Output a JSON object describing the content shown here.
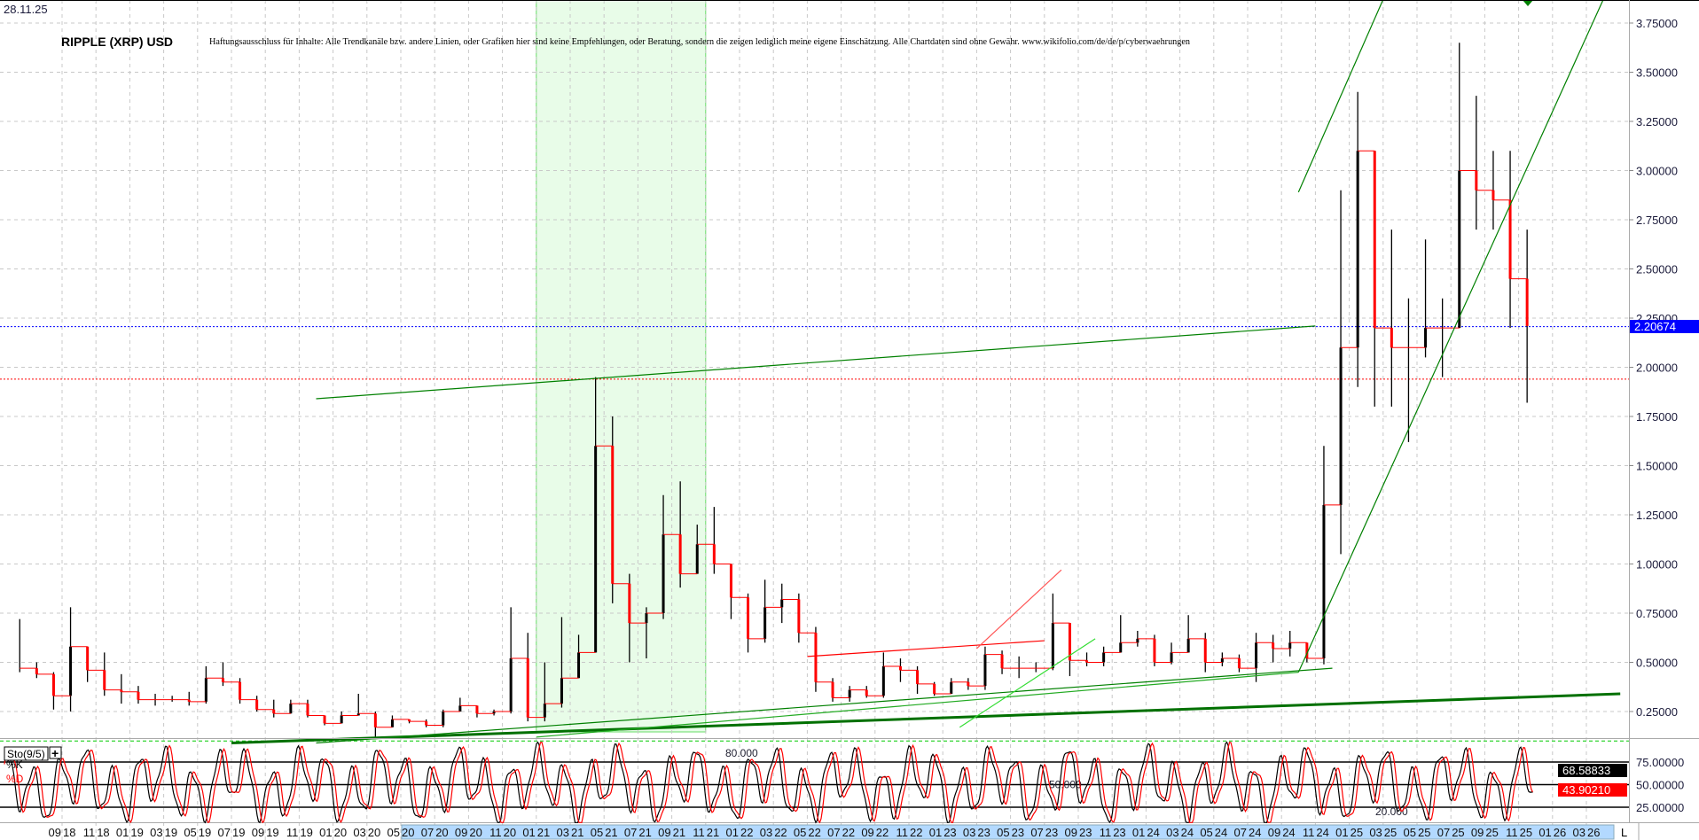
{
  "header": {
    "date": "28.11.25",
    "title": "RIPPLE (XRP) USD",
    "disclaimer": "Haftungsausschluss für Inhalte: Alle Trendkanäle bzw. andere Linien, oder Grafiken hier sind keine Empfehlungen, oder Beratung, sondern die zeigen lediglich meine eigene Einschätzung. Alle Chartdaten sind ohne Gewähr.  www.wikifolio.com/de/de/p/cyberwaehrungen"
  },
  "chart_data": [
    {
      "type": "ohlc",
      "title": "RIPPLE (XRP) USD",
      "y_axis_position": "right",
      "ylim": [
        0.1,
        3.87
      ],
      "yticks": [
        "3.75000",
        "3.50000",
        "3.25000",
        "3.00000",
        "2.75000",
        "2.50000",
        "2.25000",
        "2.00000",
        "1.75000",
        "1.50000",
        "1.25000",
        "1.00000",
        "0.75000",
        "0.50000",
        "0.25000"
      ],
      "xticks": [
        "09 18",
        "11 18",
        "01 19",
        "03 19",
        "05 19",
        "07 19",
        "09 19",
        "11 19",
        "01 20",
        "03 20",
        "05 20",
        "07 20",
        "09 20",
        "11 20",
        "01 21",
        "03 21",
        "05 21",
        "07 21",
        "09 21",
        "11 21",
        "01 22",
        "03 22",
        "05 22",
        "07 22",
        "09 22",
        "11 22",
        "01 23",
        "03 23",
        "05 23",
        "07 23",
        "09 23",
        "11 23",
        "01 24",
        "03 24",
        "05 24",
        "07 24",
        "09 24",
        "11 24",
        "01 25",
        "03 25",
        "05 25",
        "07 25",
        "09 25",
        "11 25",
        "01 26",
        "03 26"
      ],
      "grid": true,
      "last_price": "2.20674",
      "colors": {
        "up": "#000000",
        "down": "#ff0000",
        "last_price": "#0000ff",
        "trend": "#008000",
        "highlight": "#e8fce8"
      },
      "highlight_zone": [
        "2021-01",
        "2021-11"
      ],
      "ohlc_fields": [
        "month",
        "high",
        "low",
        "close"
      ],
      "ohlc": [
        [
          "2018-06",
          0.72,
          0.45,
          0.47
        ],
        [
          "2018-07",
          0.5,
          0.42,
          0.44
        ],
        [
          "2018-08",
          0.45,
          0.26,
          0.33
        ],
        [
          "2018-09",
          0.78,
          0.25,
          0.58
        ],
        [
          "2018-10",
          0.58,
          0.4,
          0.46
        ],
        [
          "2018-11",
          0.55,
          0.33,
          0.36
        ],
        [
          "2018-12",
          0.44,
          0.29,
          0.35
        ],
        [
          "2019-01",
          0.38,
          0.29,
          0.31
        ],
        [
          "2019-02",
          0.34,
          0.28,
          0.31
        ],
        [
          "2019-03",
          0.33,
          0.3,
          0.31
        ],
        [
          "2019-04",
          0.35,
          0.28,
          0.3
        ],
        [
          "2019-05",
          0.48,
          0.29,
          0.42
        ],
        [
          "2019-06",
          0.5,
          0.38,
          0.4
        ],
        [
          "2019-07",
          0.42,
          0.29,
          0.31
        ],
        [
          "2019-08",
          0.33,
          0.25,
          0.26
        ],
        [
          "2019-09",
          0.31,
          0.22,
          0.24
        ],
        [
          "2019-10",
          0.31,
          0.24,
          0.29
        ],
        [
          "2019-11",
          0.31,
          0.22,
          0.23
        ],
        [
          "2019-12",
          0.23,
          0.18,
          0.19
        ],
        [
          "2020-01",
          0.25,
          0.19,
          0.23
        ],
        [
          "2020-02",
          0.34,
          0.23,
          0.24
        ],
        [
          "2020-03",
          0.25,
          0.11,
          0.17
        ],
        [
          "2020-04",
          0.23,
          0.17,
          0.21
        ],
        [
          "2020-05",
          0.21,
          0.19,
          0.2
        ],
        [
          "2020-06",
          0.21,
          0.17,
          0.18
        ],
        [
          "2020-07",
          0.26,
          0.17,
          0.25
        ],
        [
          "2020-08",
          0.32,
          0.25,
          0.28
        ],
        [
          "2020-09",
          0.28,
          0.22,
          0.24
        ],
        [
          "2020-10",
          0.26,
          0.23,
          0.25
        ],
        [
          "2020-11",
          0.78,
          0.24,
          0.52
        ],
        [
          "2020-12",
          0.65,
          0.2,
          0.22
        ],
        [
          "2021-01",
          0.5,
          0.2,
          0.29
        ],
        [
          "2021-02",
          0.73,
          0.27,
          0.42
        ],
        [
          "2021-03",
          0.64,
          0.42,
          0.55
        ],
        [
          "2021-04",
          1.95,
          0.55,
          1.6
        ],
        [
          "2021-05",
          1.75,
          0.8,
          0.9
        ],
        [
          "2021-06",
          0.95,
          0.5,
          0.7
        ],
        [
          "2021-07",
          0.78,
          0.52,
          0.75
        ],
        [
          "2021-08",
          1.35,
          0.72,
          1.15
        ],
        [
          "2021-09",
          1.42,
          0.88,
          0.95
        ],
        [
          "2021-10",
          1.2,
          0.95,
          1.1
        ],
        [
          "2021-11",
          1.29,
          0.95,
          1.0
        ],
        [
          "2021-12",
          1.0,
          0.72,
          0.83
        ],
        [
          "2022-01",
          0.85,
          0.55,
          0.62
        ],
        [
          "2022-02",
          0.92,
          0.6,
          0.78
        ],
        [
          "2022-03",
          0.9,
          0.7,
          0.82
        ],
        [
          "2022-04",
          0.85,
          0.6,
          0.65
        ],
        [
          "2022-05",
          0.68,
          0.35,
          0.4
        ],
        [
          "2022-06",
          0.42,
          0.3,
          0.32
        ],
        [
          "2022-07",
          0.38,
          0.3,
          0.36
        ],
        [
          "2022-08",
          0.38,
          0.32,
          0.33
        ],
        [
          "2022-09",
          0.55,
          0.32,
          0.48
        ],
        [
          "2022-10",
          0.52,
          0.4,
          0.46
        ],
        [
          "2022-11",
          0.48,
          0.34,
          0.39
        ],
        [
          "2022-12",
          0.4,
          0.33,
          0.34
        ],
        [
          "2023-01",
          0.42,
          0.34,
          0.4
        ],
        [
          "2023-02",
          0.42,
          0.36,
          0.38
        ],
        [
          "2023-03",
          0.58,
          0.36,
          0.54
        ],
        [
          "2023-04",
          0.56,
          0.44,
          0.47
        ],
        [
          "2023-05",
          0.53,
          0.42,
          0.47
        ],
        [
          "2023-06",
          0.5,
          0.45,
          0.47
        ],
        [
          "2023-07",
          0.85,
          0.46,
          0.7
        ],
        [
          "2023-08",
          0.7,
          0.43,
          0.51
        ],
        [
          "2023-09",
          0.55,
          0.48,
          0.5
        ],
        [
          "2023-10",
          0.58,
          0.48,
          0.55
        ],
        [
          "2023-11",
          0.74,
          0.55,
          0.6
        ],
        [
          "2023-12",
          0.66,
          0.58,
          0.62
        ],
        [
          "2024-01",
          0.64,
          0.48,
          0.5
        ],
        [
          "2024-02",
          0.6,
          0.49,
          0.55
        ],
        [
          "2024-03",
          0.74,
          0.55,
          0.62
        ],
        [
          "2024-04",
          0.65,
          0.45,
          0.5
        ],
        [
          "2024-05",
          0.55,
          0.48,
          0.52
        ],
        [
          "2024-06",
          0.54,
          0.45,
          0.47
        ],
        [
          "2024-07",
          0.65,
          0.4,
          0.6
        ],
        [
          "2024-08",
          0.64,
          0.5,
          0.57
        ],
        [
          "2024-09",
          0.66,
          0.53,
          0.6
        ],
        [
          "2024-10",
          0.6,
          0.5,
          0.52
        ],
        [
          "2024-11",
          1.6,
          0.49,
          1.3
        ],
        [
          "2024-12",
          2.9,
          1.05,
          2.1
        ],
        [
          "2025-01",
          3.4,
          1.9,
          3.1
        ],
        [
          "2025-02",
          3.1,
          1.8,
          2.2
        ],
        [
          "2025-03",
          2.7,
          1.8,
          2.1
        ],
        [
          "2025-04",
          2.35,
          1.62,
          2.1
        ],
        [
          "2025-05",
          2.65,
          2.05,
          2.2
        ],
        [
          "2025-06",
          2.35,
          1.95,
          2.2
        ],
        [
          "2025-07",
          3.65,
          2.2,
          3.0
        ],
        [
          "2025-08",
          3.38,
          2.7,
          2.9
        ],
        [
          "2025-09",
          3.1,
          2.7,
          2.85
        ],
        [
          "2025-10",
          3.1,
          2.2,
          2.45
        ],
        [
          "2025-11",
          2.7,
          1.82,
          2.21
        ]
      ],
      "horizontal_lines": [
        {
          "price": 2.20674,
          "color": "#0000ff",
          "style": "dotted"
        },
        {
          "price": 1.94,
          "color": "#ff0000",
          "style": "dotted"
        },
        {
          "price": 0.1,
          "color": "#00cc00",
          "style": "dashed"
        }
      ],
      "trendlines": [
        {
          "from": [
            "2019-12",
            1.84
          ],
          "to": [
            "2024-11",
            2.21
          ],
          "color": "#008000",
          "weight": "thin"
        },
        {
          "from": [
            "2019-07",
            0.09
          ],
          "to": [
            "2026-05",
            0.34
          ],
          "color": "#007000",
          "weight": "thick"
        },
        {
          "from": [
            "2019-12",
            0.09
          ],
          "to": [
            "2024-12",
            0.47
          ],
          "color": "#008000",
          "weight": "thin"
        },
        {
          "from": [
            "2021-01",
            0.12
          ],
          "to": [
            "2024-10",
            0.45
          ],
          "color": "#22aa22",
          "weight": "thin"
        },
        {
          "from": [
            "2024-10",
            0.45
          ],
          "to": [
            "2026-04",
            3.87
          ],
          "color": "#008000",
          "weight": "thin"
        },
        {
          "from": [
            "2024-10",
            2.89
          ],
          "to": [
            "2025-03",
            3.87
          ],
          "color": "#008000",
          "weight": "thin"
        },
        {
          "from": [
            "2023-02",
            0.17
          ],
          "to": [
            "2023-10",
            0.62
          ],
          "color": "#33dd33",
          "weight": "thin"
        },
        {
          "from": [
            "2022-05",
            0.53
          ],
          "to": [
            "2023-07",
            0.61
          ],
          "color": "#ff0000",
          "weight": "thin"
        },
        {
          "from": [
            "2023-03",
            0.57
          ],
          "to": [
            "2023-08",
            0.97
          ],
          "color": "#ff5555",
          "weight": "thin"
        }
      ]
    },
    {
      "type": "line",
      "title": "Sto(9/5)",
      "series": [
        {
          "name": "%K",
          "color": "#000000",
          "last": "68.58833"
        },
        {
          "name": "%D",
          "color": "#ff0000",
          "last": "43.90210"
        }
      ],
      "ylim": [
        0,
        100
      ],
      "yticks": [
        "75.00000",
        "50.00000",
        "25.00000"
      ],
      "levels": [
        {
          "value": 80,
          "label": "80.000"
        },
        {
          "value": 50,
          "label": "50.000"
        },
        {
          "value": 20,
          "label": "20.000"
        }
      ]
    }
  ],
  "toolbar": {
    "add_button": "+",
    "scale_toggle": "L"
  }
}
